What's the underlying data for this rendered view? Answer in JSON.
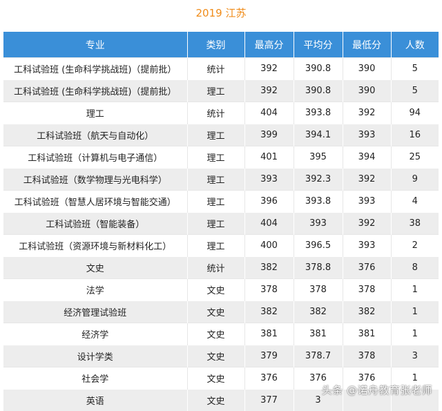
{
  "title": "2019 江苏",
  "table": {
    "headers": [
      "专业",
      "类别",
      "最高分",
      "平均分",
      "最低分",
      "人数"
    ],
    "rows": [
      [
        "工科试验班 (生命科学挑战班)（提前批）",
        "统计",
        "392",
        "390.8",
        "390",
        "5"
      ],
      [
        "工科试验班 (生命科学挑战班)（提前批）",
        "理工",
        "392",
        "390.8",
        "390",
        "5"
      ],
      [
        "理工",
        "统计",
        "404",
        "393.8",
        "392",
        "94"
      ],
      [
        "工科试验班（航天与自动化）",
        "理工",
        "399",
        "394.1",
        "393",
        "16"
      ],
      [
        "工科试验班（计算机与电子通信）",
        "理工",
        "401",
        "395",
        "394",
        "25"
      ],
      [
        "工科试验班（数学物理与光电科学）",
        "理工",
        "393",
        "392.3",
        "392",
        "9"
      ],
      [
        "工科试验班（智慧人居环境与智能交通）",
        "理工",
        "396",
        "393.8",
        "393",
        "4"
      ],
      [
        "工科试验班（智能装备）",
        "理工",
        "404",
        "393",
        "392",
        "38"
      ],
      [
        "工科试验班（资源环境与新材料化工）",
        "理工",
        "400",
        "396.5",
        "393",
        "2"
      ],
      [
        "文史",
        "统计",
        "382",
        "378.8",
        "376",
        "8"
      ],
      [
        "法学",
        "文史",
        "378",
        "378",
        "378",
        "1"
      ],
      [
        "经济管理试验班",
        "文史",
        "382",
        "382",
        "382",
        "1"
      ],
      [
        "经济学",
        "文史",
        "381",
        "381",
        "381",
        "1"
      ],
      [
        "设计学类",
        "文史",
        "379",
        "378.7",
        "378",
        "3"
      ],
      [
        "社会学",
        "文史",
        "376",
        "376",
        "376",
        "1"
      ],
      [
        "英语",
        "文史",
        "377",
        "3",
        "",
        ""
      ]
    ]
  },
  "watermark": "头条 @诺舟教育张老师",
  "colors": {
    "title": "#f08c1a",
    "header_bg": "#3a8fd8",
    "stripe": "#ededed"
  }
}
